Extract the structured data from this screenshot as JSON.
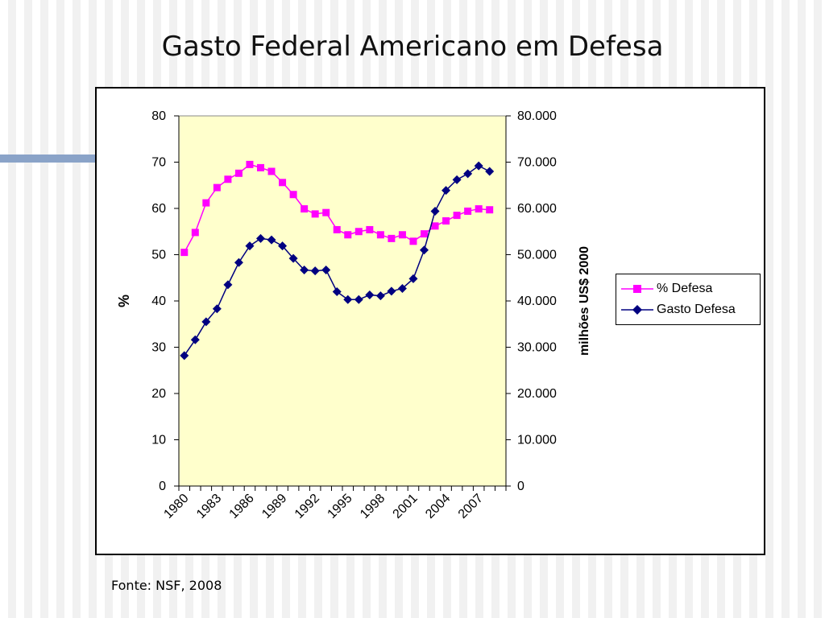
{
  "slide": {
    "title": "Gasto Federal Americano em Defesa",
    "source": "Fonte: NSF, 2008"
  },
  "chart_data": {
    "type": "line",
    "title": "",
    "x": [
      1980,
      1981,
      1982,
      1983,
      1984,
      1985,
      1986,
      1987,
      1988,
      1989,
      1990,
      1991,
      1992,
      1993,
      1994,
      1995,
      1996,
      1997,
      1998,
      1999,
      2000,
      2001,
      2002,
      2003,
      2004,
      2005,
      2006,
      2007,
      2008,
      2009
    ],
    "x_tick_labels": [
      "1980",
      "1983",
      "1986",
      "1989",
      "1992",
      "1995",
      "1998",
      "2001",
      "2004",
      "2007"
    ],
    "ylabel": "%",
    "ylim": [
      0,
      80
    ],
    "y_ticks": [
      "0",
      "10",
      "20",
      "30",
      "40",
      "50",
      "60",
      "70",
      "80"
    ],
    "y2label": "milhões US$ 2000",
    "y2lim": [
      0,
      80000
    ],
    "y2_ticks": [
      "0",
      "10.000",
      "20.000",
      "30.000",
      "40.000",
      "50.000",
      "60.000",
      "70.000",
      "80.000"
    ],
    "plot_background": "#ffffcc",
    "grid": false,
    "legend_position": "right",
    "series": [
      {
        "name": "% Defesa",
        "axis": "left",
        "color": "#ff00ff",
        "marker": "square",
        "values": [
          50.5,
          54.8,
          61.2,
          64.5,
          66.3,
          67.6,
          69.5,
          68.8,
          68.0,
          65.6,
          63.0,
          59.9,
          58.8,
          59.1,
          55.4,
          54.3,
          55.0,
          55.4,
          54.3,
          53.5,
          54.3,
          52.9,
          54.5,
          56.2,
          57.3,
          58.5,
          59.4,
          59.9,
          59.7,
          null
        ]
      },
      {
        "name": "Gasto Defesa",
        "axis": "right",
        "color": "#000080",
        "marker": "diamond",
        "values": [
          28200,
          31600,
          35500,
          38300,
          43500,
          48300,
          51900,
          53500,
          53200,
          51900,
          49200,
          46700,
          46500,
          46700,
          42000,
          40300,
          40300,
          41300,
          41100,
          42100,
          42700,
          44800,
          51000,
          59400,
          63900,
          66200,
          67500,
          69200,
          68000,
          null
        ]
      }
    ]
  }
}
